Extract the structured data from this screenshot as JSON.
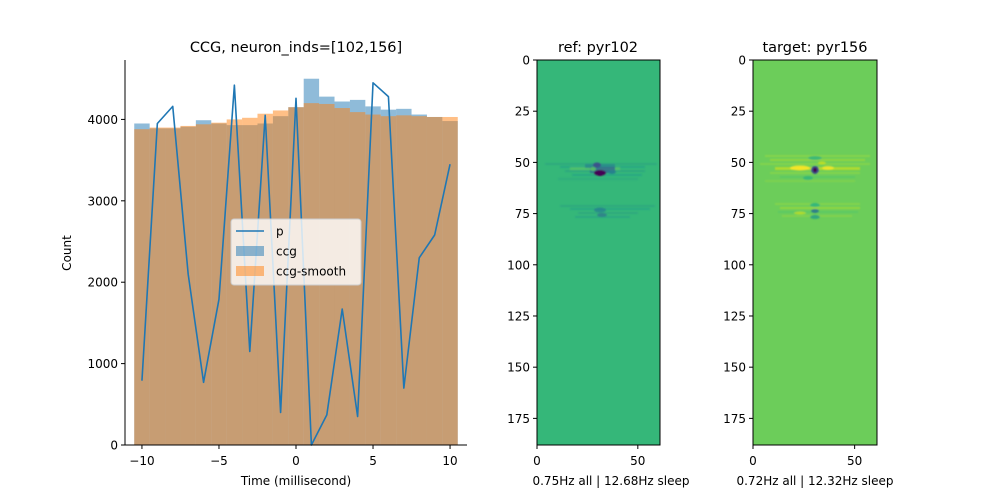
{
  "chart_data": [
    {
      "type": "bar",
      "title": "CCG, neuron_inds=[102,156]",
      "xlabel": "Time (millisecond)",
      "ylabel": "Count",
      "xlim": [
        -11.1,
        11.1
      ],
      "ylim": [
        0,
        4730
      ],
      "xticks": [
        -10,
        -5,
        0,
        5,
        10
      ],
      "yticks": [
        0,
        1000,
        2000,
        3000,
        4000
      ],
      "legend": "center-right",
      "x": [
        -10,
        -9,
        -8,
        -7,
        -6,
        -5,
        -4,
        -3,
        -2,
        -1,
        0,
        1,
        2,
        3,
        4,
        5,
        6,
        7,
        8,
        9,
        10
      ],
      "series": [
        {
          "name": "p",
          "type": "line",
          "color": "#1f77b4",
          "values": [
            790,
            3950,
            4160,
            2100,
            770,
            1790,
            4420,
            1150,
            4050,
            400,
            4260,
            0,
            370,
            1670,
            350,
            4450,
            4280,
            700,
            2300,
            2580,
            3450
          ]
        },
        {
          "name": "ccg",
          "type": "bar",
          "color": "#1f77b4",
          "opacity": 0.5,
          "values": [
            3950,
            3890,
            3890,
            3910,
            3990,
            3950,
            3930,
            3930,
            3950,
            4040,
            4150,
            4500,
            4280,
            4220,
            4240,
            4160,
            4120,
            4130,
            4060,
            4030,
            3980
          ]
        },
        {
          "name": "ccg-smooth",
          "type": "bar",
          "color": "#ff7f0e",
          "opacity": 0.5,
          "values": [
            3880,
            3900,
            3900,
            3920,
            3940,
            3960,
            4000,
            4020,
            4070,
            4110,
            4150,
            4200,
            4190,
            4140,
            4090,
            4060,
            4040,
            4050,
            4040,
            4030,
            4030
          ]
        }
      ]
    },
    {
      "type": "heatmap",
      "title": "ref: pyr102",
      "xlabel": "0.75Hz all | 12.68Hz sleep",
      "xticks": [
        0,
        50
      ],
      "yticks": [
        0,
        25,
        50,
        75,
        100,
        125,
        150,
        175
      ],
      "xlim": [
        0,
        61
      ],
      "ylim": [
        188,
        0
      ],
      "colormap": "viridis",
      "background_color": "#35b779"
    },
    {
      "type": "heatmap",
      "title": "target: pyr156",
      "xlabel": "0.72Hz all | 12.32Hz sleep",
      "xticks": [
        0,
        50
      ],
      "yticks": [
        0,
        25,
        50,
        75,
        100,
        125,
        150,
        175
      ],
      "xlim": [
        0,
        61
      ],
      "ylim": [
        188,
        0
      ],
      "colormap": "viridis",
      "background_color": "#6ccd5a"
    }
  ]
}
